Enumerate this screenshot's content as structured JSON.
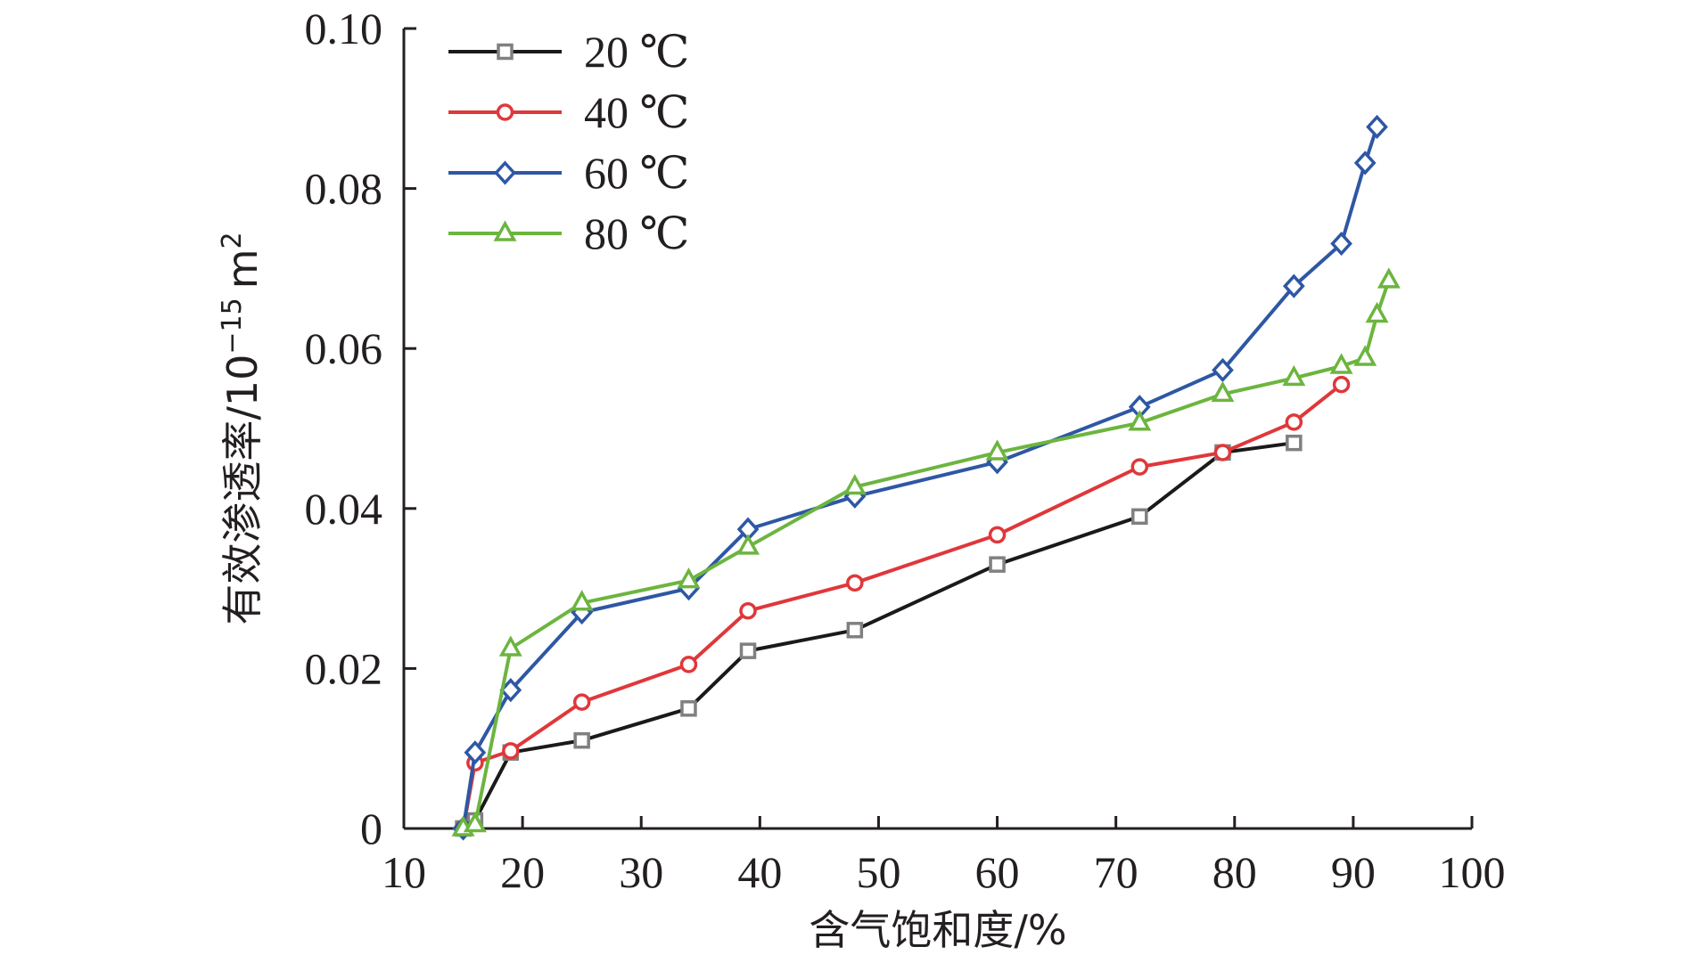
{
  "chart_data": {
    "type": "line",
    "title": "",
    "xlabel": "含气饱和度/%",
    "ylabel_text": "有效渗透率/10",
    "ylabel_exponent": "−15",
    "ylabel_unit": "m",
    "ylabel_unit_exponent": "2",
    "xlim": [
      10,
      100
    ],
    "ylim": [
      0,
      0.1
    ],
    "x_ticks": [
      10,
      20,
      30,
      40,
      50,
      60,
      70,
      80,
      90,
      100
    ],
    "x_tick_labels": [
      "10",
      "20",
      "30",
      "40",
      "50",
      "60",
      "70",
      "80",
      "90",
      "100"
    ],
    "y_ticks": [
      0,
      0.02,
      0.04,
      0.06,
      0.08,
      0.1
    ],
    "y_tick_labels": [
      "0",
      "0.02",
      "0.04",
      "0.06",
      "0.08",
      "0.10"
    ],
    "grid": false,
    "legend_position": "top-left",
    "series": [
      {
        "name": "20 ℃",
        "color": "#1a1a1a",
        "marker_color": "#808080",
        "marker": "square",
        "x": [
          15,
          16,
          19,
          25,
          34,
          39,
          48,
          60,
          72,
          79,
          85
        ],
        "y": [
          0,
          0.001,
          0.0095,
          0.011,
          0.015,
          0.0222,
          0.0248,
          0.033,
          0.039,
          0.047,
          0.0482
        ]
      },
      {
        "name": "40 ℃",
        "color": "#e0373a",
        "marker_color": "#e0373a",
        "marker": "circle",
        "x": [
          15,
          16,
          19,
          25,
          34,
          39,
          48,
          60,
          72,
          79,
          85,
          89
        ],
        "y": [
          0,
          0.0082,
          0.0097,
          0.0158,
          0.0205,
          0.0272,
          0.0307,
          0.0367,
          0.0452,
          0.047,
          0.0508,
          0.0555
        ]
      },
      {
        "name": "60 ℃",
        "color": "#2e57a4",
        "marker_color": "#2e57a4",
        "marker": "diamond",
        "x": [
          15,
          16,
          19,
          25,
          34,
          39,
          48,
          60,
          72,
          79,
          85,
          89,
          91,
          92
        ],
        "y": [
          0,
          0.0095,
          0.0173,
          0.027,
          0.03,
          0.0374,
          0.0415,
          0.0458,
          0.0527,
          0.0573,
          0.0678,
          0.0731,
          0.0832,
          0.0877
        ]
      },
      {
        "name": "80 ℃",
        "color": "#6cb53f",
        "marker_color": "#6cb53f",
        "marker": "triangle",
        "x": [
          15,
          16,
          19,
          25,
          34,
          39,
          48,
          60,
          72,
          79,
          85,
          89,
          91,
          92,
          93
        ],
        "y": [
          0,
          0.0005,
          0.0225,
          0.0282,
          0.031,
          0.0352,
          0.0427,
          0.047,
          0.0507,
          0.0543,
          0.0563,
          0.0578,
          0.0588,
          0.0642,
          0.0685
        ]
      }
    ]
  }
}
